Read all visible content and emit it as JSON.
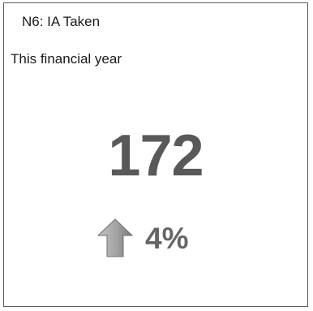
{
  "card": {
    "title": "N6: IA Taken",
    "subtitle": "This financial year",
    "value": "172",
    "trend": {
      "direction": "up",
      "icon": "arrow-up-icon",
      "value": "4%"
    }
  },
  "colors": {
    "value_text": "#595959",
    "trend_text": "#666666",
    "arrow_fill": "#9a9a9a",
    "border": "#5a5a5a"
  }
}
